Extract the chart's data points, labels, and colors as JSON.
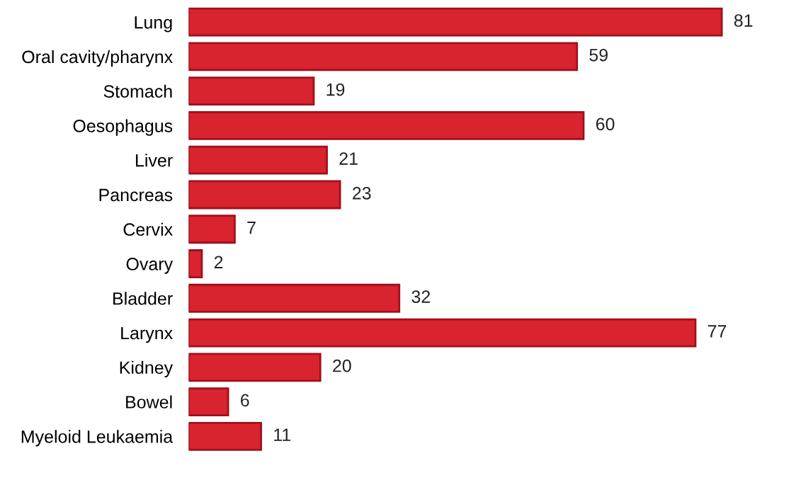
{
  "chart_data": {
    "type": "bar",
    "orientation": "horizontal",
    "categories": [
      "Lung",
      "Oral cavity/pharynx",
      "Stomach",
      "Oesophagus",
      "Liver",
      "Pancreas",
      "Cervix",
      "Ovary",
      "Bladder",
      "Larynx",
      "Kidney",
      "Bowel",
      "Myeloid Leukaemia"
    ],
    "values": [
      81,
      59,
      19,
      60,
      21,
      23,
      7,
      2,
      32,
      77,
      20,
      6,
      11
    ],
    "color": "#d9232f",
    "data_labels": true,
    "grid": false,
    "legend": false
  }
}
